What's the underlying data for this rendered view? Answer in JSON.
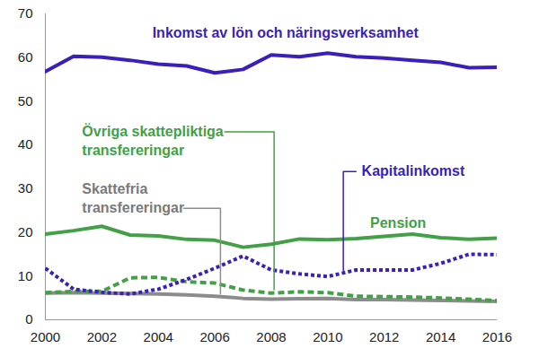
{
  "chart_data": {
    "type": "line",
    "x": [
      2000,
      2001,
      2002,
      2003,
      2004,
      2005,
      2006,
      2007,
      2008,
      2009,
      2010,
      2011,
      2012,
      2013,
      2014,
      2015,
      2016
    ],
    "series": [
      {
        "name": "Inkomst av lön och näringsverksamhet",
        "color": "#3b1fb8",
        "line_style": "solid",
        "values": [
          56.8,
          60.3,
          60.1,
          59.4,
          58.5,
          58.1,
          56.5,
          57.3,
          60.6,
          60.2,
          61.0,
          60.2,
          59.9,
          59.4,
          58.9,
          57.7,
          57.8
        ]
      },
      {
        "name": "Pension",
        "color": "#43a047",
        "line_style": "solid",
        "values": [
          19.6,
          20.4,
          21.4,
          19.4,
          19.2,
          18.4,
          18.2,
          16.6,
          17.3,
          18.5,
          18.3,
          18.6,
          19.1,
          19.6,
          18.8,
          18.4,
          18.7
        ]
      },
      {
        "name": "Kapitalinkomst",
        "color": "#3b1fb8",
        "line_style": "dotted",
        "values": [
          11.8,
          7.0,
          6.3,
          5.9,
          7.0,
          9.2,
          11.8,
          14.6,
          11.4,
          10.5,
          9.9,
          11.4,
          11.4,
          11.4,
          12.9,
          15.0,
          14.9
        ]
      },
      {
        "name": "Övriga skattepliktiga transfereringar",
        "color": "#43a047",
        "line_style": "dashed",
        "values": [
          6.2,
          6.5,
          6.5,
          9.6,
          9.7,
          8.7,
          8.4,
          6.8,
          6.1,
          6.4,
          6.2,
          5.4,
          5.3,
          5.2,
          5.0,
          4.7,
          4.4
        ]
      },
      {
        "name": "Skattefria transfereringar",
        "color": "#8c8c8c",
        "line_style": "solid",
        "values": [
          6.1,
          6.2,
          6.1,
          6.0,
          5.9,
          5.7,
          5.4,
          4.9,
          4.7,
          4.8,
          4.9,
          4.6,
          4.6,
          4.5,
          4.4,
          4.3,
          4.2
        ]
      }
    ],
    "xlim": [
      2000,
      2016
    ],
    "xticks": [
      2000,
      2002,
      2004,
      2006,
      2008,
      2010,
      2012,
      2014,
      2016
    ],
    "ylim": [
      0,
      70
    ],
    "yticks": [
      0,
      10,
      20,
      30,
      40,
      50,
      60,
      70
    ],
    "grid": false
  }
}
